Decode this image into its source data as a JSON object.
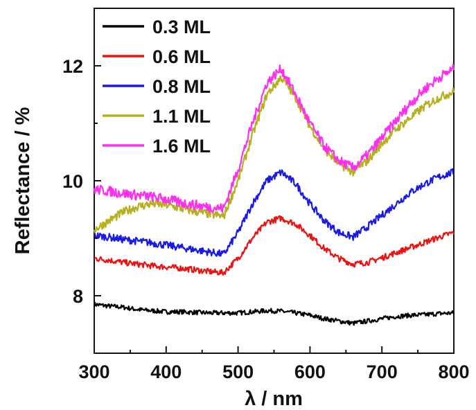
{
  "chart_data": {
    "type": "line",
    "xlabel": "λ / nm",
    "ylabel": "Reflectance / %",
    "xlim": [
      300,
      800
    ],
    "ylim": [
      7,
      13
    ],
    "x_ticks": [
      300,
      400,
      500,
      600,
      700,
      800
    ],
    "y_ticks": [
      8,
      10,
      12
    ],
    "grid": false,
    "legend_position": "top-left",
    "x": [
      300,
      320,
      340,
      360,
      380,
      400,
      420,
      440,
      460,
      480,
      500,
      520,
      540,
      560,
      580,
      600,
      620,
      640,
      660,
      680,
      700,
      720,
      740,
      760,
      780,
      800
    ],
    "series": [
      {
        "name": "0.3 ML",
        "color": "#000000",
        "values": [
          7.85,
          7.82,
          7.8,
          7.76,
          7.74,
          7.72,
          7.72,
          7.71,
          7.7,
          7.7,
          7.7,
          7.72,
          7.74,
          7.73,
          7.7,
          7.66,
          7.6,
          7.56,
          7.52,
          7.56,
          7.6,
          7.64,
          7.66,
          7.67,
          7.69,
          7.7
        ]
      },
      {
        "name": "0.6 ML",
        "color": "#ee1111",
        "values": [
          8.65,
          8.62,
          8.58,
          8.55,
          8.52,
          8.5,
          8.48,
          8.45,
          8.42,
          8.4,
          8.65,
          9.0,
          9.28,
          9.35,
          9.25,
          9.05,
          8.82,
          8.65,
          8.55,
          8.58,
          8.66,
          8.75,
          8.84,
          8.93,
          9.02,
          9.1
        ]
      },
      {
        "name": "0.8 ML",
        "color": "#1a1ae6",
        "values": [
          9.05,
          9.02,
          8.98,
          8.95,
          8.92,
          8.88,
          8.84,
          8.8,
          8.76,
          8.72,
          9.1,
          9.6,
          10.0,
          10.15,
          9.95,
          9.6,
          9.3,
          9.1,
          9.02,
          9.2,
          9.4,
          9.6,
          9.8,
          9.95,
          10.07,
          10.15
        ]
      },
      {
        "name": "1.1 ML",
        "color": "#b5b01c",
        "values": [
          9.15,
          9.3,
          9.45,
          9.55,
          9.6,
          9.58,
          9.52,
          9.47,
          9.42,
          9.38,
          10.0,
          10.8,
          11.5,
          11.8,
          11.45,
          10.95,
          10.55,
          10.3,
          10.15,
          10.35,
          10.65,
          10.9,
          11.1,
          11.3,
          11.45,
          11.55
        ]
      },
      {
        "name": "1.6 ML",
        "color": "#ff2ff0",
        "values": [
          9.85,
          9.82,
          9.78,
          9.75,
          9.72,
          9.68,
          9.62,
          9.58,
          9.54,
          9.52,
          10.2,
          11.0,
          11.7,
          11.95,
          11.5,
          11.0,
          10.6,
          10.35,
          10.22,
          10.45,
          10.75,
          11.05,
          11.35,
          11.6,
          11.8,
          11.95
        ]
      }
    ]
  }
}
